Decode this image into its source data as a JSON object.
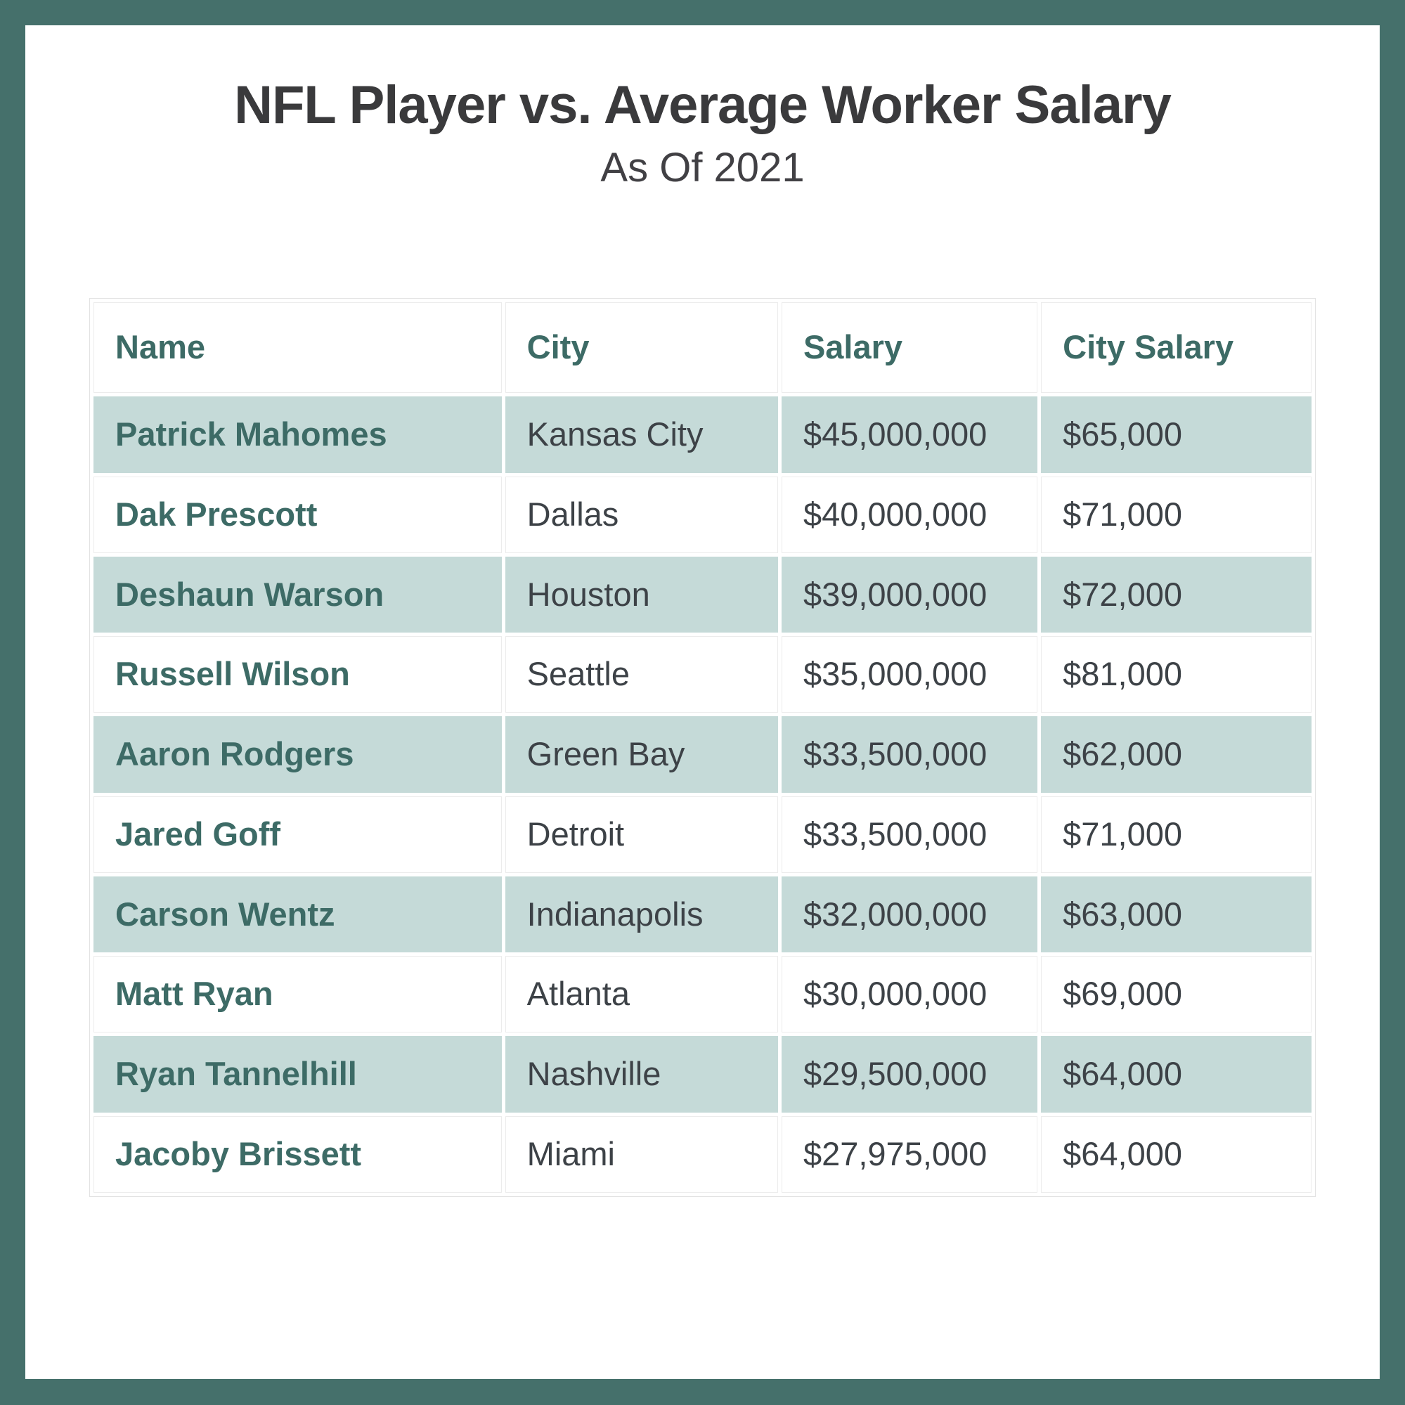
{
  "header": {
    "title": "NFL Player vs. Average Worker Salary",
    "subtitle": "As Of 2021"
  },
  "colors": {
    "frame_teal": "#45706b",
    "row_stripe_teal": "#c5dad8",
    "heading_teal": "#3d6b66",
    "body_text": "#3d4247",
    "title_text": "#3a3a3c"
  },
  "table": {
    "columns": [
      "Name",
      "City",
      "Salary",
      "City Salary"
    ],
    "rows": [
      {
        "name": "Patrick Mahomes",
        "city": "Kansas City",
        "salary": "$45,000,000",
        "city_salary": "$65,000"
      },
      {
        "name": "Dak Prescott",
        "city": "Dallas",
        "salary": "$40,000,000",
        "city_salary": "$71,000"
      },
      {
        "name": "Deshaun Warson",
        "city": "Houston",
        "salary": "$39,000,000",
        "city_salary": "$72,000"
      },
      {
        "name": "Russell Wilson",
        "city": "Seattle",
        "salary": "$35,000,000",
        "city_salary": "$81,000"
      },
      {
        "name": "Aaron Rodgers",
        "city": "Green Bay",
        "salary": "$33,500,000",
        "city_salary": "$62,000"
      },
      {
        "name": "Jared Goff",
        "city": "Detroit",
        "salary": "$33,500,000",
        "city_salary": "$71,000"
      },
      {
        "name": "Carson Wentz",
        "city": "Indianapolis",
        "salary": "$32,000,000",
        "city_salary": "$63,000"
      },
      {
        "name": "Matt Ryan",
        "city": "Atlanta",
        "salary": "$30,000,000",
        "city_salary": "$69,000"
      },
      {
        "name": "Ryan Tannelhill",
        "city": "Nashville",
        "salary": "$29,500,000",
        "city_salary": "$64,000"
      },
      {
        "name": "Jacoby Brissett",
        "city": "Miami",
        "salary": "$27,975,000",
        "city_salary": "$64,000"
      }
    ]
  }
}
